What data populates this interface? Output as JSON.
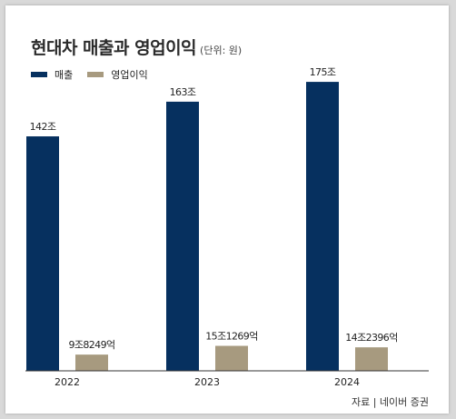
{
  "title": "현대차 매출과 영업이익",
  "unit": "(단위: 원)",
  "source": "자료 | 네이버 증권",
  "colors": {
    "revenue": "#06305f",
    "operating_profit": "#a79a7f"
  },
  "chart_data": {
    "type": "bar",
    "title": "현대차 매출과 영업이익",
    "categories": [
      "2022",
      "2023",
      "2024"
    ],
    "series": [
      {
        "name": "매출",
        "values": [
          142,
          163,
          175
        ],
        "labels": [
          "142조",
          "163조",
          "175조"
        ]
      },
      {
        "name": "영업이익",
        "values": [
          9.8249,
          15.1269,
          14.2396
        ],
        "labels": [
          "9조8249억",
          "15조1269억",
          "14조2396억"
        ]
      }
    ],
    "value_unit": "조원",
    "ylim": [
      0,
      180
    ],
    "grid": false,
    "legend": "top-left"
  }
}
